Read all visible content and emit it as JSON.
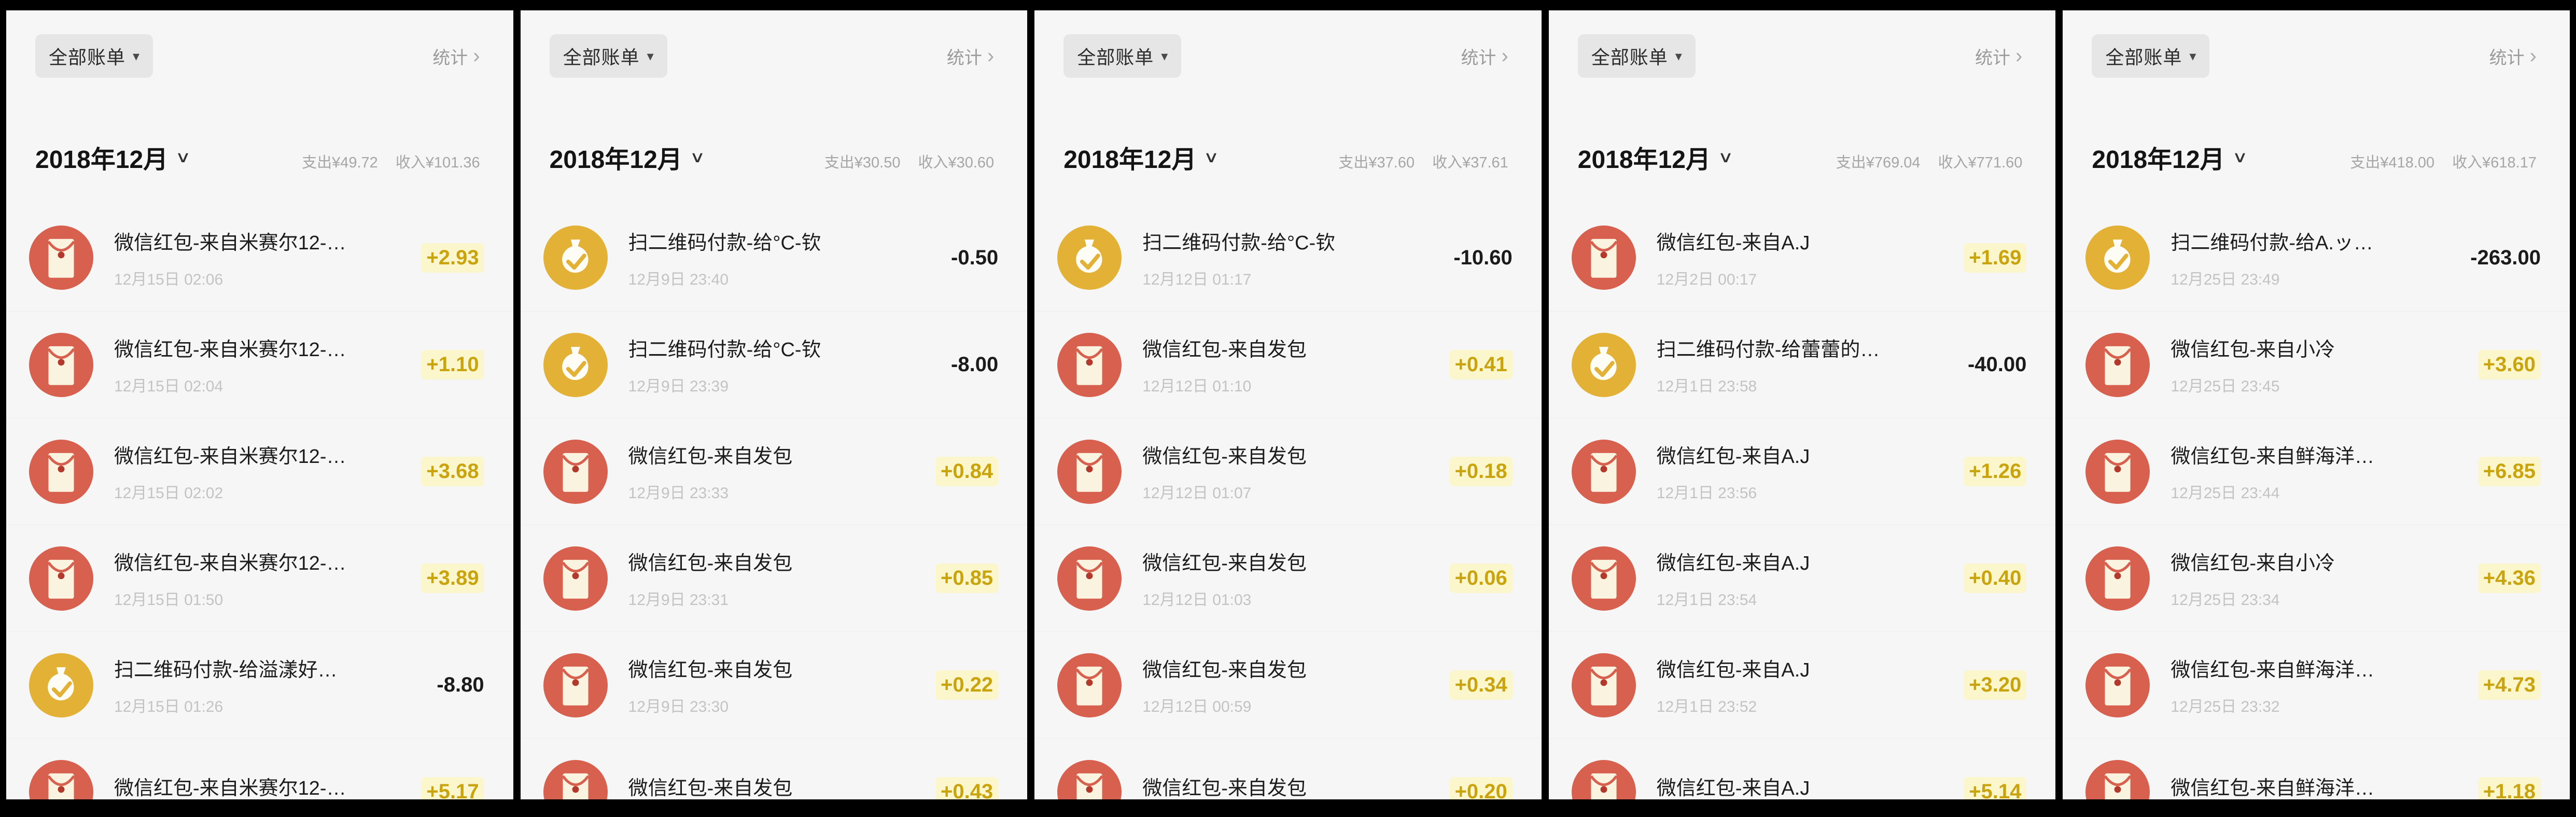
{
  "ui": {
    "filter_label": "全部账单",
    "dropdown_caret": "▾",
    "stats_label": "统计",
    "chevron": "›",
    "month_caret": "∨"
  },
  "panels": [
    {
      "month": "2018年12月",
      "expense": "支出¥49.72",
      "income": "收入¥101.36",
      "transactions": [
        {
          "icon": "red-packet",
          "title": "微信红包-来自米赛尔12-…",
          "time": "12月15日 02:06",
          "amount": "+2.93"
        },
        {
          "icon": "red-packet",
          "title": "微信红包-来自米赛尔12-…",
          "time": "12月15日 02:04",
          "amount": "+1.10"
        },
        {
          "icon": "red-packet",
          "title": "微信红包-来自米赛尔12-…",
          "time": "12月15日 02:02",
          "amount": "+3.68"
        },
        {
          "icon": "red-packet",
          "title": "微信红包-来自米赛尔12-…",
          "time": "12月15日 01:50",
          "amount": "+3.89"
        },
        {
          "icon": "qr-payment",
          "title": "扫二维码付款-给溢漾好…",
          "time": "12月15日 01:26",
          "amount": "-8.80"
        },
        {
          "icon": "red-packet",
          "title": "微信红包-来自米赛尔12-…",
          "time": "",
          "amount": "+5.17"
        }
      ]
    },
    {
      "month": "2018年12月",
      "expense": "支出¥30.50",
      "income": "收入¥30.60",
      "transactions": [
        {
          "icon": "qr-payment",
          "title": "扫二维码付款-给°C-钦",
          "time": "12月9日 23:40",
          "amount": "-0.50"
        },
        {
          "icon": "qr-payment",
          "title": "扫二维码付款-给°C-钦",
          "time": "12月9日 23:39",
          "amount": "-8.00"
        },
        {
          "icon": "red-packet",
          "title": "微信红包-来自发包",
          "time": "12月9日 23:33",
          "amount": "+0.84"
        },
        {
          "icon": "red-packet",
          "title": "微信红包-来自发包",
          "time": "12月9日 23:31",
          "amount": "+0.85"
        },
        {
          "icon": "red-packet",
          "title": "微信红包-来自发包",
          "time": "12月9日 23:30",
          "amount": "+0.22"
        },
        {
          "icon": "red-packet",
          "title": "微信红包-来自发包",
          "time": "",
          "amount": "+0.43"
        }
      ]
    },
    {
      "month": "2018年12月",
      "expense": "支出¥37.60",
      "income": "收入¥37.61",
      "transactions": [
        {
          "icon": "qr-payment",
          "title": "扫二维码付款-给°C-钦",
          "time": "12月12日 01:17",
          "amount": "-10.60"
        },
        {
          "icon": "red-packet",
          "title": "微信红包-来自发包",
          "time": "12月12日 01:10",
          "amount": "+0.41"
        },
        {
          "icon": "red-packet",
          "title": "微信红包-来自发包",
          "time": "12月12日 01:07",
          "amount": "+0.18"
        },
        {
          "icon": "red-packet",
          "title": "微信红包-来自发包",
          "time": "12月12日 01:03",
          "amount": "+0.06"
        },
        {
          "icon": "red-packet",
          "title": "微信红包-来自发包",
          "time": "12月12日 00:59",
          "amount": "+0.34"
        },
        {
          "icon": "red-packet",
          "title": "微信红包-来自发包",
          "time": "",
          "amount": "+0.20"
        }
      ]
    },
    {
      "month": "2018年12月",
      "expense": "支出¥769.04",
      "income": "收入¥771.60",
      "transactions": [
        {
          "icon": "red-packet",
          "title": "微信红包-来自A.J",
          "time": "12月2日 00:17",
          "amount": "+1.69"
        },
        {
          "icon": "qr-payment",
          "title": "扫二维码付款-给蕾蕾的…",
          "time": "12月1日 23:58",
          "amount": "-40.00"
        },
        {
          "icon": "red-packet",
          "title": "微信红包-来自A.J",
          "time": "12月1日 23:56",
          "amount": "+1.26"
        },
        {
          "icon": "red-packet",
          "title": "微信红包-来自A.J",
          "time": "12月1日 23:54",
          "amount": "+0.40"
        },
        {
          "icon": "red-packet",
          "title": "微信红包-来自A.J",
          "time": "12月1日 23:52",
          "amount": "+3.20"
        },
        {
          "icon": "red-packet",
          "title": "微信红包-来自A.J",
          "time": "",
          "amount": "+5.14"
        }
      ]
    },
    {
      "month": "2018年12月",
      "expense": "支出¥418.00",
      "income": "收入¥618.17",
      "transactions": [
        {
          "icon": "qr-payment",
          "title": "扫二维码付款-给A.ッ…",
          "time": "12月25日 23:49",
          "amount": "-263.00"
        },
        {
          "icon": "red-packet",
          "title": "微信红包-来自小冷",
          "time": "12月25日 23:45",
          "amount": "+3.60"
        },
        {
          "icon": "red-packet",
          "title": "微信红包-来自鲜海洋…",
          "time": "12月25日 23:44",
          "amount": "+6.85"
        },
        {
          "icon": "red-packet",
          "title": "微信红包-来自小冷",
          "time": "12月25日 23:34",
          "amount": "+4.36"
        },
        {
          "icon": "red-packet",
          "title": "微信红包-来自鲜海洋…",
          "time": "12月25日 23:32",
          "amount": "+4.73"
        },
        {
          "icon": "red-packet",
          "title": "微信红包-来自鲜海洋…",
          "time": "",
          "amount": "+1.18"
        }
      ]
    }
  ]
}
